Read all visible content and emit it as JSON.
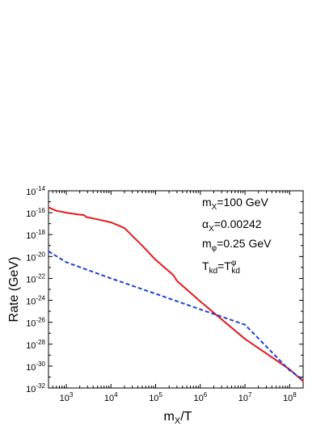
{
  "chart_data": {
    "type": "line",
    "xscale": "log",
    "yscale": "log",
    "xlim": [
      400,
      200000000
    ],
    "ylim": [
      1e-32,
      1e-14
    ],
    "xlabel": "mX/T",
    "ylabel": "Rate (GeV)",
    "x_tick_labels": [
      "10^3",
      "10^4",
      "10^5",
      "10^6",
      "10^7",
      "10^8"
    ],
    "y_tick_labels": [
      "10^-14",
      "10^-16",
      "10^-18",
      "10^-20",
      "10^-22",
      "10^-24",
      "10^-26",
      "10^-28",
      "10^-30",
      "10^-32"
    ],
    "annotations": [
      "mX=100 GeV",
      "αX=0.00242",
      "mφ=0.25 GeV",
      "Tkd=Tkdφ"
    ],
    "grid": false,
    "series": [
      {
        "style": "solid",
        "color": "#e31a1c",
        "points": [
          [
            400,
            3e-16
          ],
          [
            600,
            1.5e-16
          ],
          [
            1000,
            1e-16
          ],
          [
            1800,
            7e-17
          ],
          [
            2500,
            6e-17
          ],
          [
            2800,
            4e-17
          ],
          [
            5000,
            2.5e-17
          ],
          [
            10000,
            1.3e-17
          ],
          [
            20000,
            4e-18
          ],
          [
            50000,
            1e-19
          ],
          [
            100000,
            5e-21
          ],
          [
            250000,
            2e-22
          ],
          [
            300000,
            6e-23
          ],
          [
            1000000,
            8e-25
          ],
          [
            10000000,
            3e-28
          ],
          [
            100000000,
            5e-31
          ],
          [
            200000000,
            4e-32
          ]
        ]
      },
      {
        "style": "dashed",
        "color": "#1f3fd6",
        "points": [
          [
            400,
            3e-20
          ],
          [
            1000,
            3e-21
          ],
          [
            10000,
            1e-22
          ],
          [
            100000,
            4e-24
          ],
          [
            1000000,
            1.5e-25
          ],
          [
            10000000,
            6e-27
          ],
          [
            100000000,
            4e-31
          ],
          [
            200000000,
            6e-32
          ]
        ]
      }
    ]
  }
}
